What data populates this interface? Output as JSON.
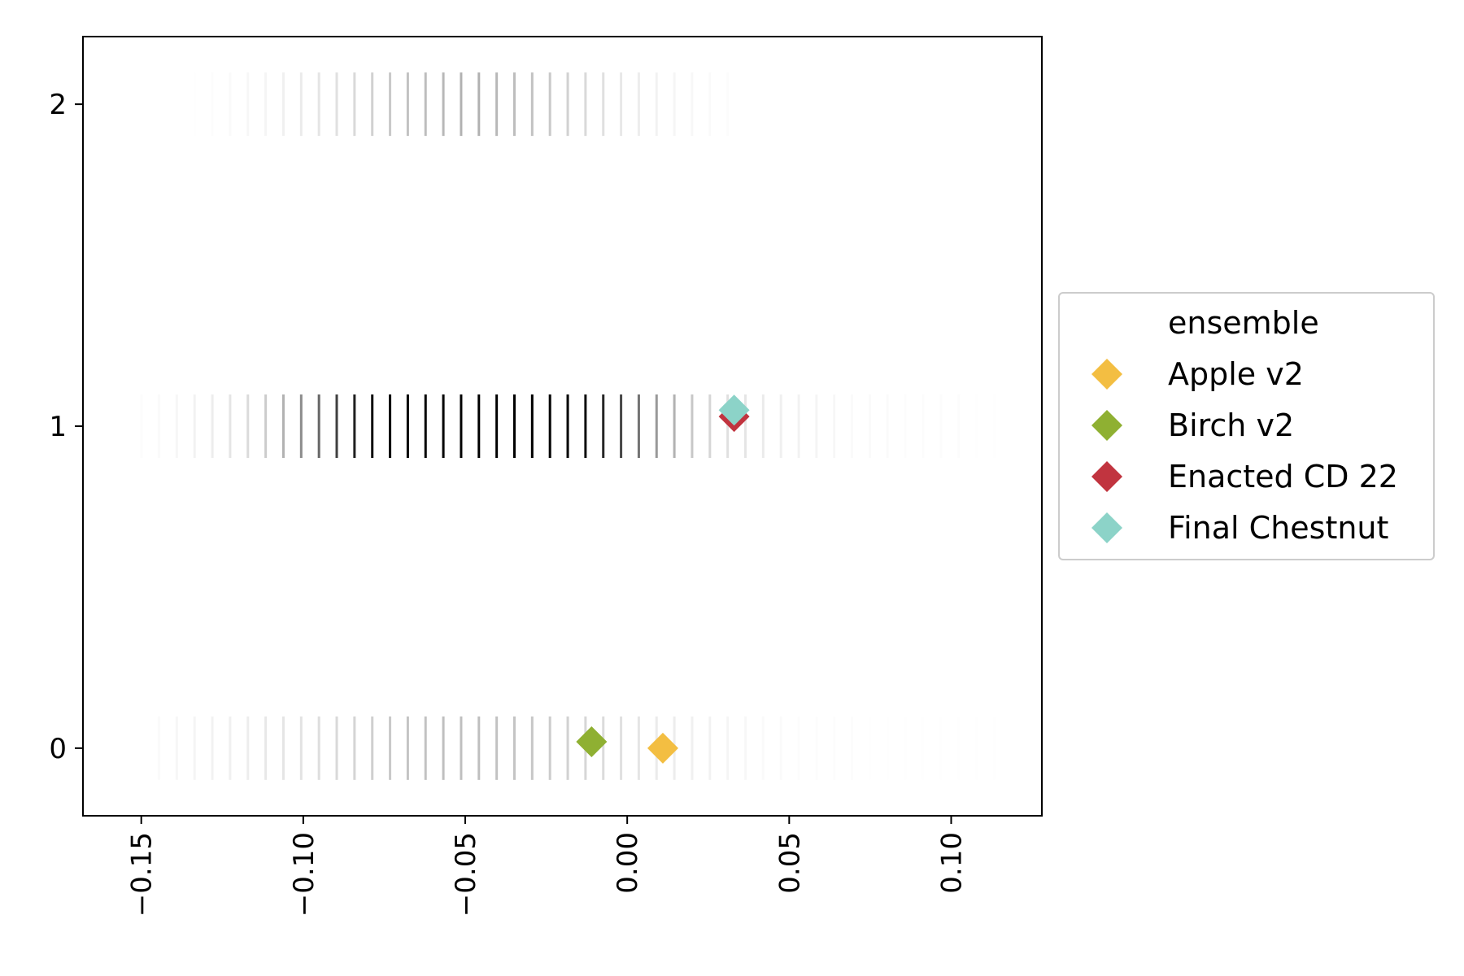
{
  "chart_data": {
    "type": "scatter",
    "title": "",
    "xlabel": "",
    "ylabel": "",
    "xlim": [
      -0.168,
      0.128
    ],
    "ylim": [
      -0.21,
      2.21
    ],
    "x_ticks": [
      -0.15,
      -0.1,
      -0.05,
      0.0,
      0.05,
      0.1
    ],
    "x_tick_labels": [
      "−0.15",
      "−0.10",
      "−0.05",
      "0.00",
      "0.05",
      "0.10"
    ],
    "y_ticks": [
      0,
      1,
      2
    ],
    "y_tick_labels": [
      "0",
      "1",
      "2"
    ],
    "grid": false,
    "background_distribution": {
      "marker": "vertical-line",
      "color": "#000000",
      "x_start": -0.15,
      "x_step": 0.005485,
      "rows": [
        {
          "y": 0,
          "opacity": [
            0,
            0.02,
            0.03,
            0.04,
            0.05,
            0.06,
            0.07,
            0.09,
            0.1,
            0.11,
            0.13,
            0.15,
            0.17,
            0.19,
            0.21,
            0.23,
            0.24,
            0.25,
            0.25,
            0.25,
            0.24,
            0.23,
            0.22,
            0.2,
            0.18,
            0.16,
            0.14,
            0.12,
            0.1,
            0.08,
            0.07,
            0.06,
            0.05,
            0.04,
            0.03,
            0.02,
            0.02,
            0.01,
            0.01,
            0.01,
            0.01,
            0.005,
            0.005,
            0.005,
            0.005,
            0.005,
            0.005,
            0.005,
            0.005
          ]
        },
        {
          "y": 1,
          "opacity": [
            0.01,
            0.02,
            0.03,
            0.05,
            0.07,
            0.1,
            0.14,
            0.2,
            0.3,
            0.45,
            0.6,
            0.75,
            0.88,
            0.95,
            1.0,
            1.0,
            1.0,
            1.0,
            1.0,
            1.0,
            1.0,
            1.0,
            1.0,
            1.0,
            1.0,
            0.95,
            0.85,
            0.72,
            0.55,
            0.4,
            0.3,
            0.22,
            0.16,
            0.12,
            0.1,
            0.08,
            0.06,
            0.05,
            0.04,
            0.03,
            0.02,
            0.02,
            0.02,
            0.01,
            0.01,
            0.01,
            0.01,
            0.005,
            0.005
          ]
        },
        {
          "y": 2,
          "opacity": [
            0,
            0,
            0,
            0.005,
            0.01,
            0.02,
            0.03,
            0.04,
            0.06,
            0.08,
            0.1,
            0.12,
            0.15,
            0.18,
            0.21,
            0.24,
            0.26,
            0.28,
            0.3,
            0.3,
            0.28,
            0.26,
            0.24,
            0.21,
            0.18,
            0.15,
            0.12,
            0.09,
            0.07,
            0.05,
            0.04,
            0.03,
            0.02,
            0.01,
            0,
            0,
            0,
            0,
            0,
            0,
            0,
            0,
            0,
            0,
            0,
            0,
            0,
            0,
            0
          ]
        }
      ]
    },
    "series": [
      {
        "name": "Apple v2",
        "color": "#F3BE42",
        "marker": "diamond",
        "points": [
          {
            "x": 0.011,
            "y": 0.0
          }
        ]
      },
      {
        "name": "Birch v2",
        "color": "#8FB032",
        "marker": "diamond",
        "points": [
          {
            "x": -0.011,
            "y": 0.02
          }
        ]
      },
      {
        "name": "Enacted CD 22",
        "color": "#C1343F",
        "marker": "diamond",
        "points": [
          {
            "x": 0.033,
            "y": 1.03
          }
        ]
      },
      {
        "name": "Final Chestnut",
        "color": "#8CD3C8",
        "marker": "diamond",
        "points": [
          {
            "x": 0.033,
            "y": 1.05
          }
        ]
      }
    ],
    "legend": {
      "title": "ensemble",
      "placement": "right-outside",
      "entries": [
        "Apple v2",
        "Birch v2",
        "Enacted CD 22",
        "Final Chestnut"
      ]
    }
  }
}
